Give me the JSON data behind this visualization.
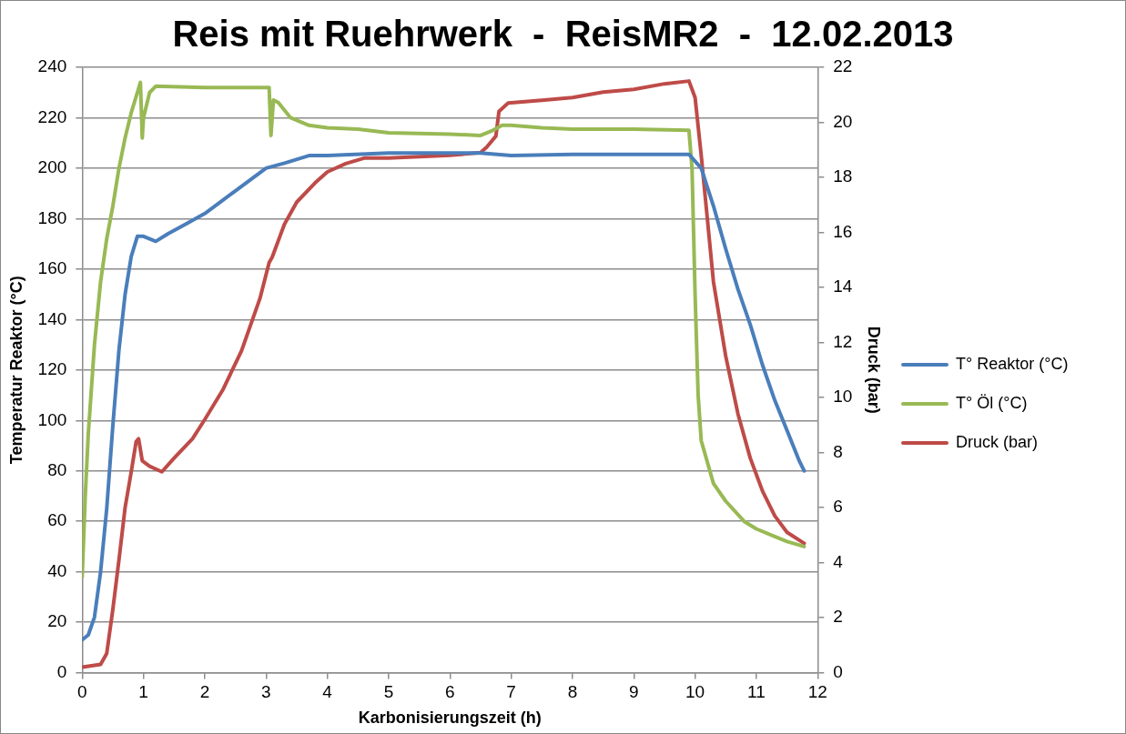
{
  "chart_data": {
    "type": "line",
    "title": "Reis mit Ruehrwerk  -  ReisMR2  -  12.02.2013",
    "xlabel": "Karbonisierungszeit (h)",
    "ylabel": "Temperatur Reaktor (°C)",
    "y2label": "Druck (bar)",
    "xlim": [
      0,
      12
    ],
    "xticks": [
      0,
      1,
      2,
      3,
      4,
      5,
      6,
      7,
      8,
      9,
      10,
      11,
      12
    ],
    "ylim": [
      0,
      240
    ],
    "yticks": [
      0,
      20,
      40,
      60,
      80,
      100,
      120,
      140,
      160,
      180,
      200,
      220,
      240
    ],
    "y2lim": [
      0,
      22
    ],
    "y2ticks": [
      0,
      2,
      4,
      6,
      8,
      10,
      12,
      14,
      16,
      18,
      20,
      22
    ],
    "grid": "y",
    "legend": "right",
    "marker": "none",
    "line_style": "solid",
    "series": [
      {
        "name": "T° Reaktor (°C)",
        "color": "#4a7ebb",
        "x": [
          0,
          0.1,
          0.2,
          0.3,
          0.4,
          0.5,
          0.6,
          0.7,
          0.8,
          0.9,
          1.0,
          1.2,
          1.4,
          1.7,
          2.0,
          2.5,
          3.0,
          3.3,
          3.7,
          4.0,
          5.0,
          6.0,
          6.5,
          7.0,
          8.0,
          9.0,
          9.9,
          10.1,
          10.3,
          10.5,
          10.7,
          10.9,
          11.1,
          11.3,
          11.5,
          11.7,
          11.78
        ],
        "values": [
          13,
          15,
          22,
          40,
          65,
          98,
          128,
          150,
          165,
          173,
          173,
          171,
          174,
          178,
          182,
          191,
          200,
          202,
          205,
          205,
          206,
          206,
          206,
          205,
          205.5,
          205.5,
          205.5,
          200,
          185,
          168,
          152,
          138,
          122,
          108,
          96,
          84,
          80
        ]
      },
      {
        "name": "T° Öl (°C)",
        "color": "#98b954",
        "x": [
          0,
          0.05,
          0.1,
          0.2,
          0.3,
          0.4,
          0.5,
          0.6,
          0.7,
          0.8,
          0.9,
          0.95,
          0.98,
          1.0,
          1.05,
          1.1,
          1.2,
          2.0,
          3.05,
          3.08,
          3.12,
          3.2,
          3.4,
          3.7,
          4.0,
          4.5,
          5.0,
          6.0,
          6.5,
          6.7,
          6.85,
          7.0,
          7.5,
          8.0,
          9.0,
          9.9,
          9.95,
          10.0,
          10.05,
          10.1,
          10.3,
          10.5,
          10.8,
          11.0,
          11.3,
          11.5,
          11.78
        ],
        "values": [
          38,
          70,
          95,
          130,
          155,
          172,
          185,
          200,
          212,
          222,
          230,
          234,
          212,
          220,
          225,
          230,
          232.5,
          232,
          232,
          213,
          227,
          226,
          220,
          217,
          216,
          215.5,
          214,
          213.5,
          213,
          215,
          217,
          217,
          216,
          215.5,
          215.5,
          215,
          200,
          150,
          110,
          92,
          75,
          68,
          60,
          57,
          54,
          52,
          50
        ]
      },
      {
        "name": "Druck (bar)",
        "color": "#be4b48",
        "axis": "y2",
        "x": [
          0,
          0.3,
          0.4,
          0.5,
          0.6,
          0.7,
          0.8,
          0.88,
          0.92,
          0.98,
          1.1,
          1.3,
          1.5,
          1.8,
          2.0,
          2.3,
          2.6,
          2.9,
          3.05,
          3.1,
          3.3,
          3.5,
          3.8,
          4.0,
          4.3,
          4.6,
          5.0,
          6.0,
          6.5,
          6.6,
          6.75,
          6.8,
          6.95,
          7.5,
          8.0,
          8.5,
          9.0,
          9.5,
          9.9,
          10.0,
          10.1,
          10.2,
          10.3,
          10.5,
          10.7,
          10.9,
          11.1,
          11.3,
          11.5,
          11.78
        ],
        "values": [
          0.2,
          0.3,
          0.7,
          2.3,
          4.1,
          6.0,
          7.3,
          8.4,
          8.5,
          7.7,
          7.5,
          7.3,
          7.8,
          8.5,
          9.2,
          10.3,
          11.7,
          13.6,
          14.9,
          15.1,
          16.3,
          17.1,
          17.8,
          18.2,
          18.5,
          18.7,
          18.7,
          18.8,
          18.9,
          19.1,
          19.5,
          20.4,
          20.7,
          20.8,
          20.9,
          21.1,
          21.2,
          21.4,
          21.5,
          20.9,
          18.8,
          16.5,
          14.2,
          11.5,
          9.4,
          7.8,
          6.6,
          5.7,
          5.1,
          4.7
        ]
      }
    ]
  }
}
